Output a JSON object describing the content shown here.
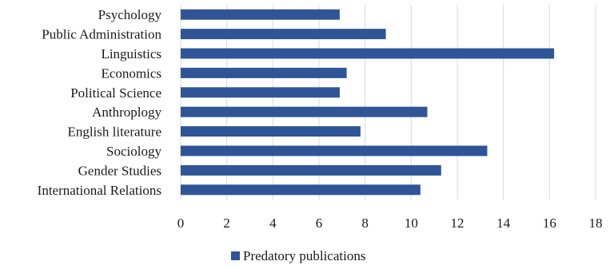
{
  "chart_data": {
    "type": "bar",
    "orientation": "horizontal",
    "categories": [
      "Psychology",
      "Public Administration",
      "Linguistics",
      "Economics",
      "Political Science",
      "Anthroplogy",
      "English literature",
      "Sociology",
      "Gender Studies",
      "International Relations"
    ],
    "series": [
      {
        "name": "Predatory publications",
        "values": [
          6.9,
          8.9,
          16.2,
          7.2,
          6.9,
          10.7,
          7.8,
          13.3,
          11.3,
          10.4
        ]
      }
    ],
    "xlim": [
      0,
      18
    ],
    "xticks": [
      "0",
      "2",
      "4",
      "6",
      "8",
      "10",
      "12",
      "14",
      "16",
      "18"
    ],
    "grid": "vertical",
    "legend_position": "bottom",
    "colors": {
      "bar": "#2F5597"
    }
  }
}
